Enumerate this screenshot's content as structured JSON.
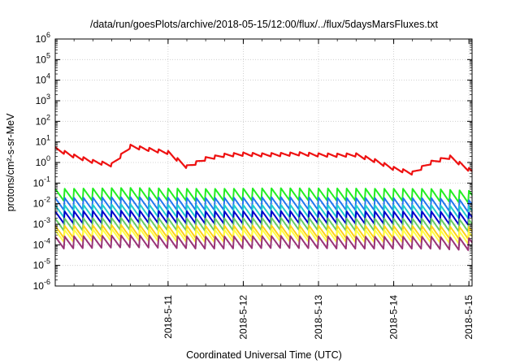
{
  "chart_data": {
    "type": "line",
    "title": "/data/run/goesPlots/archive/2018-05-15/12:00/flux/../flux/5daysMarsFluxes.txt",
    "xlabel": "Coordinated Universal Time (UTC)",
    "ylabel": "protons/cm²-s-sr-MeV",
    "yscale": "log",
    "ylim": [
      1e-06,
      1000000.0
    ],
    "xlim": [
      "2018-05-10T00:00",
      "2018-05-15T13:00"
    ],
    "grid": true,
    "legend": "none",
    "x_ticks": [
      "2018-5-11",
      "2018-5-12",
      "2018-5-13",
      "2018-5-14",
      "2018-5-15"
    ],
    "y_ticks": [
      {
        "base": "10",
        "exp": "6"
      },
      {
        "base": "10",
        "exp": "5"
      },
      {
        "base": "10",
        "exp": "4"
      },
      {
        "base": "10",
        "exp": "3"
      },
      {
        "base": "10",
        "exp": "2"
      },
      {
        "base": "10",
        "exp": "1"
      },
      {
        "base": "10",
        "exp": "0"
      },
      {
        "base": "10",
        "exp": "-1"
      },
      {
        "base": "10",
        "exp": "-2"
      },
      {
        "base": "10",
        "exp": "-3"
      },
      {
        "base": "10",
        "exp": "-4"
      },
      {
        "base": "10",
        "exp": "-5"
      },
      {
        "base": "10",
        "exp": "-6"
      }
    ],
    "series": [
      {
        "color": "#ee1111",
        "x": [
          "2018-05-10T00:00",
          "2018-05-10T06:00",
          "2018-05-10T12:00",
          "2018-05-10T18:00",
          "2018-05-11T00:00",
          "2018-05-11T06:00",
          "2018-05-11T12:00",
          "2018-05-11T18:00",
          "2018-05-12T00:00",
          "2018-05-12T06:00",
          "2018-05-12T12:00",
          "2018-05-12T18:00",
          "2018-05-13T00:00",
          "2018-05-13T06:00",
          "2018-05-13T12:00",
          "2018-05-13T18:00",
          "2018-05-14T00:00",
          "2018-05-14T06:00",
          "2018-05-14T12:00",
          "2018-05-14T18:00",
          "2018-05-15T00:00",
          "2018-05-15T06:00",
          "2018-05-15T13:00"
        ],
        "y": [
          4.5,
          2.0,
          1.1,
          0.75,
          6.0,
          4.2,
          3.0,
          0.6,
          1.5,
          2.2,
          2.5,
          2.3,
          2.4,
          2.6,
          2.3,
          2.2,
          2.3,
          1.2,
          0.5,
          0.3,
          1.0,
          1.8,
          0.35
        ]
      },
      {
        "color": "#22ee22",
        "x": [
          "2018-05-10T00:00",
          "2018-05-11T00:00",
          "2018-05-12T00:00",
          "2018-05-13T00:00",
          "2018-05-14T00:00",
          "2018-05-15T00:00",
          "2018-05-15T13:00"
        ],
        "y": [
          0.025,
          0.028,
          0.025,
          0.027,
          0.026,
          0.025,
          0.02
        ]
      },
      {
        "color": "#2277ee",
        "x": [
          "2018-05-10T00:00",
          "2018-05-11T00:00",
          "2018-05-12T00:00",
          "2018-05-13T00:00",
          "2018-05-14T00:00",
          "2018-05-15T00:00",
          "2018-05-15T13:00"
        ],
        "y": [
          0.009,
          0.01,
          0.009,
          0.01,
          0.009,
          0.009,
          0.007
        ]
      },
      {
        "color": "#22cccc",
        "x": [
          "2018-05-10T00:00",
          "2018-05-11T00:00",
          "2018-05-12T00:00",
          "2018-05-13T00:00",
          "2018-05-14T00:00",
          "2018-05-15T00:00",
          "2018-05-15T13:00"
        ],
        "y": [
          0.004,
          0.0045,
          0.004,
          0.0042,
          0.004,
          0.004,
          0.0035
        ]
      },
      {
        "color": "#0000cc",
        "x": [
          "2018-05-10T00:00",
          "2018-05-11T00:00",
          "2018-05-12T00:00",
          "2018-05-13T00:00",
          "2018-05-14T00:00",
          "2018-05-15T00:00",
          "2018-05-15T13:00"
        ],
        "y": [
          0.002,
          0.0022,
          0.002,
          0.0021,
          0.002,
          0.002,
          0.0017
        ]
      },
      {
        "color": "#66cc66",
        "x": [
          "2018-05-10T00:00",
          "2018-05-11T00:00",
          "2018-05-12T00:00",
          "2018-05-13T00:00",
          "2018-05-14T00:00",
          "2018-05-15T00:00",
          "2018-05-15T13:00"
        ],
        "y": [
          0.0009,
          0.001,
          0.0009,
          0.001,
          0.0009,
          0.0009,
          0.0008
        ]
      },
      {
        "color": "#ffd11a",
        "x": [
          "2018-05-10T00:00",
          "2018-05-11T00:00",
          "2018-05-12T00:00",
          "2018-05-13T00:00",
          "2018-05-14T00:00",
          "2018-05-15T00:00",
          "2018-05-15T13:00"
        ],
        "y": [
          0.0004,
          0.00045,
          0.0004,
          0.00042,
          0.0004,
          0.0004,
          0.00035
        ]
      },
      {
        "color": "#ffff44",
        "x": [
          "2018-05-10T00:00",
          "2018-05-11T00:00",
          "2018-05-12T00:00",
          "2018-05-13T00:00",
          "2018-05-14T00:00",
          "2018-05-15T00:00",
          "2018-05-15T13:00"
        ],
        "y": [
          0.00025,
          0.0003,
          0.00025,
          0.00028,
          0.00025,
          0.00025,
          0.0002
        ]
      },
      {
        "color": "#993377",
        "x": [
          "2018-05-10T00:00",
          "2018-05-11T00:00",
          "2018-05-12T00:00",
          "2018-05-13T00:00",
          "2018-05-14T00:00",
          "2018-05-15T00:00",
          "2018-05-15T13:00"
        ],
        "y": [
          0.00012,
          0.00014,
          0.00012,
          0.00013,
          0.00012,
          0.00012,
          0.0001
        ]
      }
    ]
  }
}
